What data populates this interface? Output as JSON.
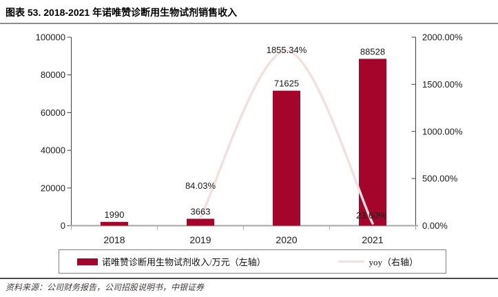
{
  "header": {
    "title": "图表 53. 2018-2021 年诺唯赞诊断用生物试剂销售收入"
  },
  "footer": {
    "source": "资料来源：公司财务报告，公司招股说明书，中银证券"
  },
  "colors": {
    "bar": "#A5042B",
    "line": "#F2E0E0",
    "axis": "#3f3f3f",
    "baseline": "#A6A6A6",
    "text": "#1a1a1a",
    "rule_top": "#8c8c8c",
    "rule_bottom": "#4a4a4a",
    "legend_border": "#7f7f7f",
    "source_text": "#443a3a"
  },
  "chart_data": {
    "type": "bar+line",
    "categories": [
      "2018",
      "2019",
      "2020",
      "2021"
    ],
    "series": [
      {
        "name": "诺唯赞诊断用生物试剂收入/万元（左轴）",
        "type": "bar",
        "axis": "left",
        "values": [
          1990,
          3663,
          71625,
          88528
        ],
        "data_labels": [
          "1990",
          "3663",
          "71625",
          "88528"
        ]
      },
      {
        "name": "yoy（右轴）",
        "type": "line",
        "axis": "right",
        "values": [
          null,
          84.03,
          1855.34,
          23.6
        ],
        "data_labels": [
          null,
          "84.03%",
          "1855.34%",
          "23.60%"
        ]
      }
    ],
    "left_axis": {
      "min": 0,
      "max": 100000,
      "tick_labels": [
        "0",
        "20000",
        "40000",
        "60000",
        "80000",
        "100000"
      ]
    },
    "right_axis": {
      "min": 0,
      "max": 2000,
      "tick_labels": [
        "0.00%",
        "500.00%",
        "1000.00%",
        "1500.00%",
        "2000.00%"
      ]
    },
    "grid": false,
    "legend_position": "bottom"
  },
  "legend": {
    "items": [
      {
        "label": "诺唯赞诊断用生物试剂收入/万元（左轴）",
        "swatch": "bar"
      },
      {
        "label": "yoy（右轴）",
        "swatch": "line"
      }
    ]
  }
}
